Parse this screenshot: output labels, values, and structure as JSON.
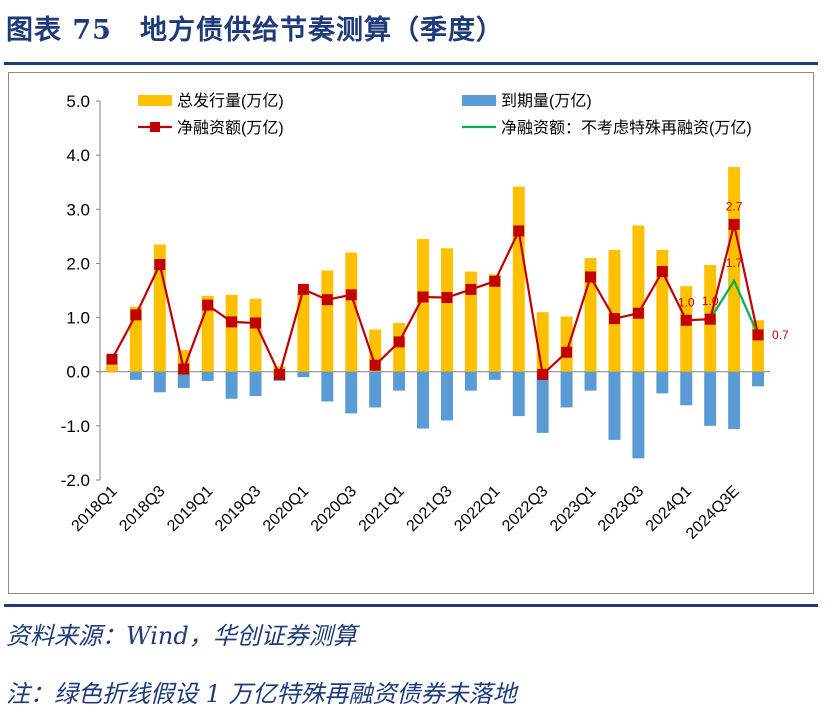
{
  "figure": {
    "title": "图表 75　地方债供给节奏测算（季度）",
    "source": "资料来源：Wind，华创证券测算",
    "note": "注：绿色折线假设 1 万亿特殊再融资债券未落地"
  },
  "colors": {
    "issuance": "#ffc000",
    "maturity": "#5b9bd5",
    "net": "#c00000",
    "net_alt": "#00b050",
    "accent": "#1f3a7a"
  },
  "chart_data": {
    "type": "bar",
    "categories": [
      "2018Q1",
      "2018Q2",
      "2018Q3",
      "2018Q4",
      "2019Q1",
      "2019Q2",
      "2019Q3",
      "2019Q4",
      "2020Q1",
      "2020Q2",
      "2020Q3",
      "2020Q4",
      "2021Q1",
      "2021Q2",
      "2021Q3",
      "2021Q4",
      "2022Q1",
      "2022Q2",
      "2022Q3",
      "2022Q4",
      "2023Q1",
      "2023Q2",
      "2023Q3",
      "2023Q4",
      "2024Q1",
      "2024Q2",
      "2024Q3E",
      "2024Q4E"
    ],
    "tick_labels": [
      "2018Q1",
      "",
      "2018Q3",
      "",
      "2019Q1",
      "",
      "2019Q3",
      "",
      "2020Q1",
      "",
      "2020Q3",
      "",
      "2021Q1",
      "",
      "2021Q3",
      "",
      "2022Q1",
      "",
      "2022Q3",
      "",
      "2023Q1",
      "",
      "2023Q3",
      "",
      "2024Q1",
      "",
      "2024Q3E",
      ""
    ],
    "series": [
      {
        "name": "总发行量(万亿)",
        "kind": "bar",
        "values": [
          0.12,
          1.2,
          2.35,
          0.4,
          1.4,
          1.42,
          1.35,
          0.1,
          1.52,
          1.87,
          2.2,
          0.78,
          0.9,
          2.45,
          2.28,
          1.85,
          1.8,
          3.42,
          1.1,
          1.02,
          2.1,
          2.25,
          2.7,
          2.25,
          1.58,
          1.97,
          3.78,
          0.95
        ]
      },
      {
        "name": "到期量(万亿)",
        "kind": "bar",
        "values": [
          0,
          -0.15,
          -0.38,
          -0.3,
          -0.17,
          -0.5,
          -0.45,
          -0.17,
          -0.1,
          -0.55,
          -0.77,
          -0.66,
          -0.35,
          -1.05,
          -0.9,
          -0.35,
          -0.15,
          -0.82,
          -1.13,
          -0.66,
          -0.35,
          -1.26,
          -1.6,
          -0.4,
          -0.62,
          -1.0,
          -1.06,
          -0.27
        ]
      },
      {
        "name": "净融资额(万亿)",
        "kind": "line",
        "values": [
          0.23,
          1.05,
          1.98,
          0.05,
          1.23,
          0.92,
          0.9,
          -0.05,
          1.52,
          1.33,
          1.42,
          0.12,
          0.55,
          1.38,
          1.37,
          1.52,
          1.67,
          2.6,
          -0.05,
          0.36,
          1.75,
          0.98,
          1.08,
          1.85,
          0.95,
          0.97,
          2.72,
          0.68
        ]
      },
      {
        "name": "净融资额：不考虑特殊再融资(万亿)",
        "kind": "line",
        "values": [
          null,
          null,
          null,
          null,
          null,
          null,
          null,
          null,
          null,
          null,
          null,
          null,
          null,
          null,
          null,
          null,
          null,
          null,
          null,
          null,
          null,
          null,
          null,
          null,
          null,
          0.97,
          1.68,
          0.68
        ]
      }
    ],
    "annotations": [
      {
        "index": 24,
        "value": 0.95,
        "text": "1.0"
      },
      {
        "index": 25,
        "value": 0.97,
        "text": "1.0"
      },
      {
        "index": 26,
        "value": 2.72,
        "text": "2.7"
      },
      {
        "index": 26,
        "value": 1.68,
        "text": "1.7"
      },
      {
        "index": 27,
        "value": 0.68,
        "text": "0.7"
      }
    ],
    "y_ticks": [
      "5.0",
      "4.0",
      "3.0",
      "2.0",
      "1.0",
      "0.0",
      "-1.0",
      "-2.0"
    ],
    "ylim": [
      -2.0,
      5.0
    ],
    "grid": false,
    "legend_position": "top"
  }
}
